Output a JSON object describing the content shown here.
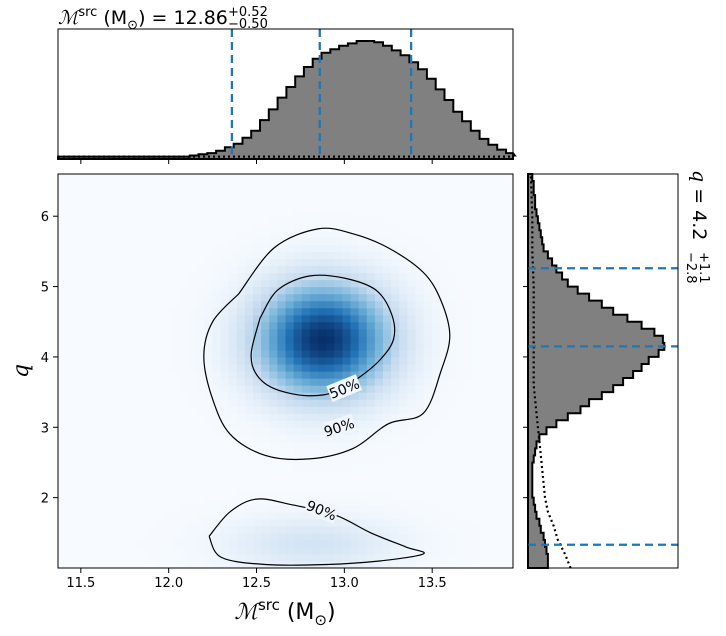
{
  "chart_data": {
    "type": "corner",
    "top_title": {
      "symbol": "ℳ",
      "sup": "src",
      "unit": " (M",
      "unit_sub": "⊙",
      "unit_close": ")",
      "eq": " = 12.86",
      "err_plus": "+0.52",
      "err_minus": "−0.50"
    },
    "right_title": {
      "symbol": "q",
      "eq": " = 4.2",
      "err_plus": "+1.1",
      "err_minus": "−2.8"
    },
    "xlabel": {
      "symbol": "ℳ",
      "sup": "src",
      "unit": " (M",
      "unit_sub": "⊙",
      "unit_close": ")"
    },
    "ylabel": "q",
    "xlim": [
      11.37,
      13.96
    ],
    "ylim": [
      1.0,
      6.6
    ],
    "xticks": [
      11.5,
      12.0,
      12.5,
      13.0,
      13.5
    ],
    "xtick_labels": [
      "11.5",
      "12.0",
      "12.5",
      "13.0",
      "13.5"
    ],
    "yticks": [
      2,
      3,
      4,
      5,
      6
    ],
    "ytick_labels": [
      "2",
      "3",
      "4",
      "5",
      "6"
    ],
    "mchirp_quantiles": [
      12.36,
      12.86,
      13.38
    ],
    "q_quantiles": [
      1.33,
      4.15,
      5.26
    ],
    "mchirp_hist": {
      "bin_edges_start": 11.37,
      "bin_width": 0.05,
      "density": [
        0.02,
        0.02,
        0.02,
        0.02,
        0.02,
        0.02,
        0.02,
        0.02,
        0.02,
        0.02,
        0.02,
        0.02,
        0.02,
        0.02,
        0.02,
        0.03,
        0.04,
        0.05,
        0.07,
        0.1,
        0.13,
        0.18,
        0.24,
        0.33,
        0.42,
        0.52,
        0.61,
        0.7,
        0.78,
        0.85,
        0.9,
        0.93,
        0.96,
        0.98,
        1.0,
        1.0,
        0.99,
        0.96,
        0.92,
        0.88,
        0.82,
        0.76,
        0.68,
        0.59,
        0.5,
        0.4,
        0.32,
        0.24,
        0.17,
        0.12,
        0.08,
        0.05,
        0.03
      ]
    },
    "mchirp_prior": 0.02,
    "q_hist": {
      "bin_edges_start": 1.0,
      "bin_width": 0.1,
      "density": [
        0.14,
        0.14,
        0.13,
        0.12,
        0.11,
        0.09,
        0.08,
        0.06,
        0.05,
        0.04,
        0.03,
        0.03,
        0.03,
        0.03,
        0.03,
        0.04,
        0.05,
        0.06,
        0.08,
        0.13,
        0.2,
        0.28,
        0.37,
        0.43,
        0.52,
        0.6,
        0.67,
        0.74,
        0.8,
        0.85,
        0.92,
        0.96,
        0.95,
        0.89,
        0.8,
        0.7,
        0.6,
        0.52,
        0.43,
        0.35,
        0.28,
        0.24,
        0.2,
        0.17,
        0.14,
        0.11,
        0.1,
        0.09,
        0.08,
        0.07,
        0.06,
        0.05,
        0.05,
        0.04,
        0.04,
        0.03
      ]
    },
    "q_prior": {
      "q": [
        1.0,
        1.2,
        1.4,
        1.6,
        1.8,
        2.0,
        2.2,
        2.4,
        2.6,
        2.8,
        3.0,
        3.2,
        3.4,
        3.6,
        3.8,
        4.0,
        4.5,
        5.0,
        5.5,
        6.0,
        6.6
      ],
      "density": [
        0.3,
        0.26,
        0.21,
        0.18,
        0.14,
        0.12,
        0.11,
        0.1,
        0.09,
        0.08,
        0.07,
        0.06,
        0.05,
        0.04,
        0.04,
        0.04,
        0.04,
        0.04,
        0.03,
        0.03,
        0.02
      ]
    },
    "blobs": [
      {
        "cx": 12.88,
        "cy": 4.25,
        "sx": 0.26,
        "sy": 0.55,
        "amp": 1.0
      },
      {
        "cx": 12.82,
        "cy": 1.35,
        "sx": 0.35,
        "sy": 0.28,
        "amp": 0.18
      }
    ],
    "contours": [
      {
        "label": "50%",
        "label_at": [
          13.0,
          3.55
        ],
        "label_angle": -22,
        "points": [
          [
            12.52,
            4.55
          ],
          [
            12.62,
            4.95
          ],
          [
            12.8,
            5.15
          ],
          [
            13.0,
            5.12
          ],
          [
            13.18,
            4.95
          ],
          [
            13.27,
            4.6
          ],
          [
            13.28,
            4.25
          ],
          [
            13.2,
            3.95
          ],
          [
            13.08,
            3.7
          ],
          [
            12.95,
            3.5
          ],
          [
            12.78,
            3.45
          ],
          [
            12.6,
            3.55
          ],
          [
            12.5,
            3.75
          ],
          [
            12.47,
            4.05
          ],
          [
            12.52,
            4.55
          ]
        ]
      },
      {
        "label": "90%",
        "label_at": [
          12.97,
          3.0
        ],
        "label_angle": -18,
        "points": [
          [
            12.4,
            4.9
          ],
          [
            12.6,
            5.55
          ],
          [
            12.85,
            5.82
          ],
          [
            13.05,
            5.75
          ],
          [
            13.25,
            5.55
          ],
          [
            13.45,
            5.2
          ],
          [
            13.55,
            4.8
          ],
          [
            13.6,
            4.3
          ],
          [
            13.55,
            3.8
          ],
          [
            13.45,
            3.2
          ],
          [
            13.25,
            3.05
          ],
          [
            13.05,
            2.7
          ],
          [
            12.8,
            2.55
          ],
          [
            12.55,
            2.6
          ],
          [
            12.35,
            2.9
          ],
          [
            12.25,
            3.4
          ],
          [
            12.2,
            4.0
          ],
          [
            12.25,
            4.5
          ],
          [
            12.4,
            4.9
          ]
        ]
      },
      {
        "label": "90%",
        "label_at": [
          12.87,
          1.82
        ],
        "label_angle": 22,
        "points": [
          [
            12.23,
            1.45
          ],
          [
            12.35,
            1.8
          ],
          [
            12.5,
            1.98
          ],
          [
            12.7,
            1.9
          ],
          [
            12.95,
            1.75
          ],
          [
            13.15,
            1.5
          ],
          [
            13.35,
            1.3
          ],
          [
            13.45,
            1.2
          ],
          [
            13.2,
            1.1
          ],
          [
            12.9,
            1.05
          ],
          [
            12.55,
            1.05
          ],
          [
            12.3,
            1.15
          ],
          [
            12.23,
            1.45
          ]
        ]
      }
    ]
  },
  "colors": {
    "quantile": "#1f77b4",
    "hist_fill": "#808080",
    "density_max": "#08306b"
  }
}
